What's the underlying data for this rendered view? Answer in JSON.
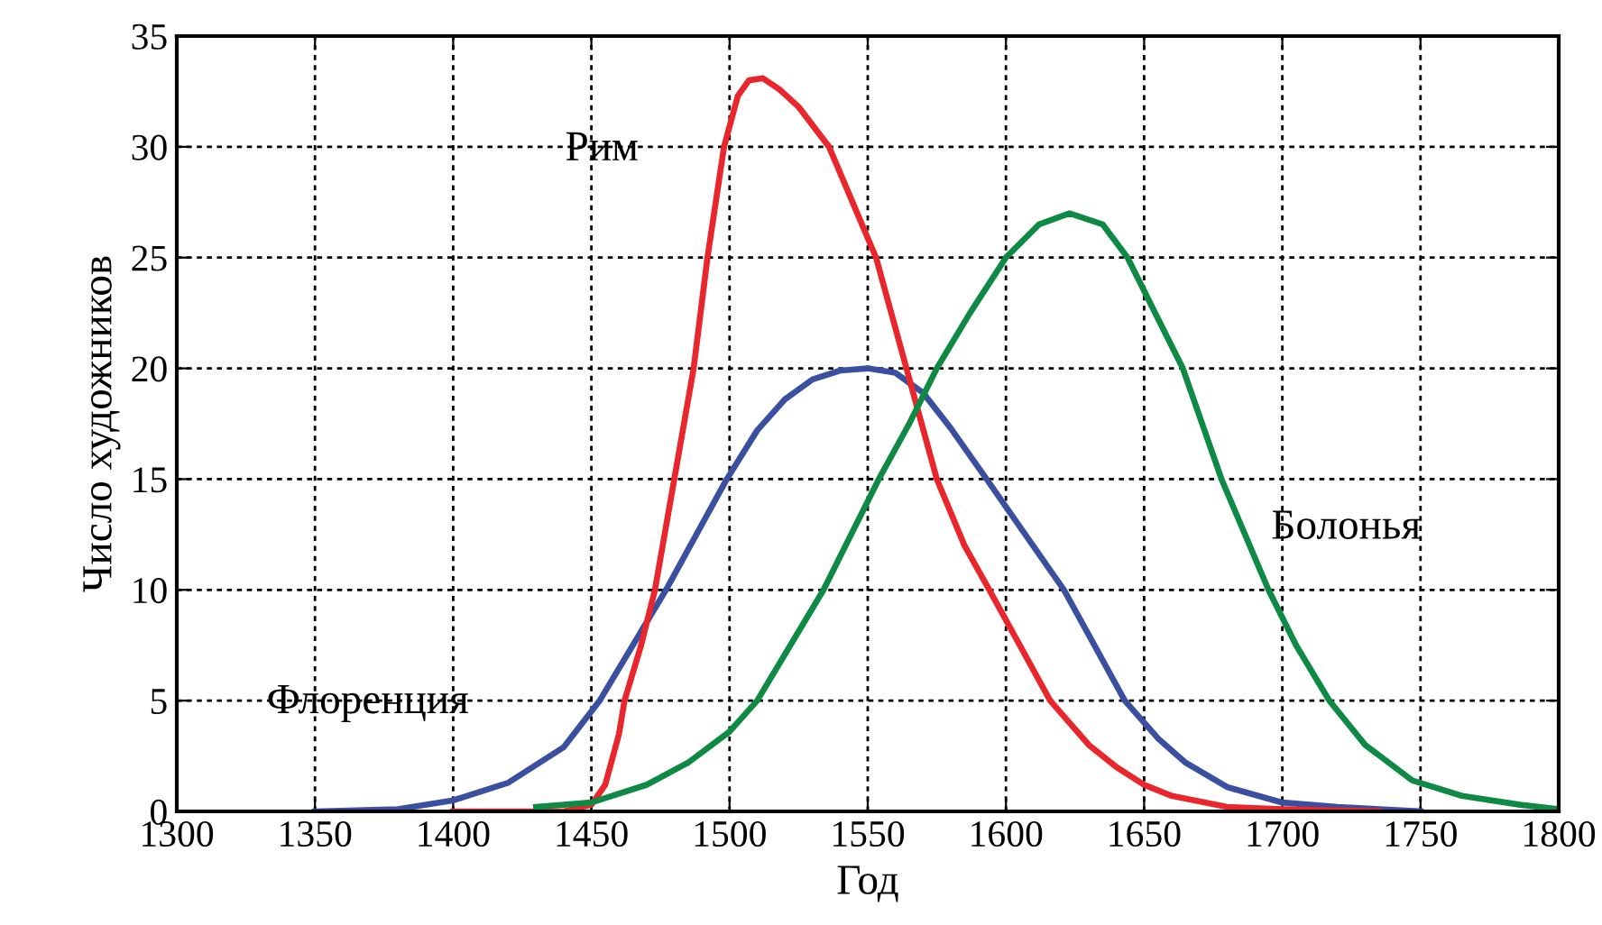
{
  "chart_data": {
    "type": "line",
    "xlabel": "Год",
    "ylabel": "Число художников",
    "xlim": [
      1300,
      1800
    ],
    "ylim": [
      0,
      35
    ],
    "xticks": [
      1300,
      1350,
      1400,
      1450,
      1500,
      1550,
      1600,
      1650,
      1700,
      1750,
      1800
    ],
    "yticks": [
      0,
      5,
      10,
      15,
      20,
      25,
      30,
      35
    ],
    "grid": true,
    "marker": "none",
    "line_style": "solid",
    "series": [
      {
        "name": "Флоренция",
        "color": "#3a4fa0",
        "x": [
          1350,
          1380,
          1400,
          1420,
          1440,
          1453,
          1465,
          1477,
          1488,
          1499,
          1510,
          1520,
          1530,
          1540,
          1550,
          1560,
          1570,
          1580,
          1593,
          1607,
          1621,
          1632,
          1643,
          1655,
          1665,
          1680,
          1700,
          1720,
          1750
        ],
        "values": [
          0,
          0.1,
          0.5,
          1.3,
          2.9,
          5,
          7.5,
          10,
          12.5,
          15,
          17.2,
          18.6,
          19.5,
          19.9,
          20,
          19.8,
          18.9,
          17.3,
          15,
          12.5,
          10,
          7.5,
          5,
          3.3,
          2.2,
          1.1,
          0.4,
          0.2,
          0
        ]
      },
      {
        "name": "Рим",
        "color": "#e8262b",
        "x": [
          1400,
          1440,
          1450,
          1455,
          1460,
          1462,
          1468,
          1473,
          1480,
          1487,
          1492,
          1498,
          1503,
          1507,
          1512,
          1518,
          1525,
          1536,
          1553,
          1564,
          1575,
          1585,
          1594,
          1605,
          1616,
          1630,
          1640,
          1650,
          1660,
          1680,
          1700,
          1735
        ],
        "values": [
          0,
          0,
          0.3,
          1.2,
          3.5,
          5,
          7.5,
          10,
          15,
          20,
          25,
          30,
          32.3,
          33,
          33.1,
          32.6,
          31.8,
          30,
          25,
          20,
          15,
          12,
          10,
          7.5,
          5,
          3,
          2,
          1.2,
          0.7,
          0.2,
          0.1,
          0
        ]
      },
      {
        "name": "Болонья",
        "color": "#0e8a45",
        "x": [
          1430,
          1450,
          1470,
          1485,
          1500,
          1510,
          1522,
          1534,
          1544,
          1554,
          1565,
          1575,
          1587,
          1600,
          1612,
          1623,
          1635,
          1644,
          1654,
          1664,
          1678,
          1695,
          1705,
          1717,
          1730,
          1747,
          1765,
          1786,
          1800
        ],
        "values": [
          0.2,
          0.4,
          1.2,
          2.2,
          3.6,
          5,
          7.5,
          10,
          12.5,
          15,
          17.5,
          20,
          22.5,
          25,
          26.5,
          27,
          26.5,
          25,
          22.5,
          20,
          15,
          10,
          7.5,
          5,
          3,
          1.4,
          0.7,
          0.3,
          0.1
        ]
      }
    ]
  }
}
